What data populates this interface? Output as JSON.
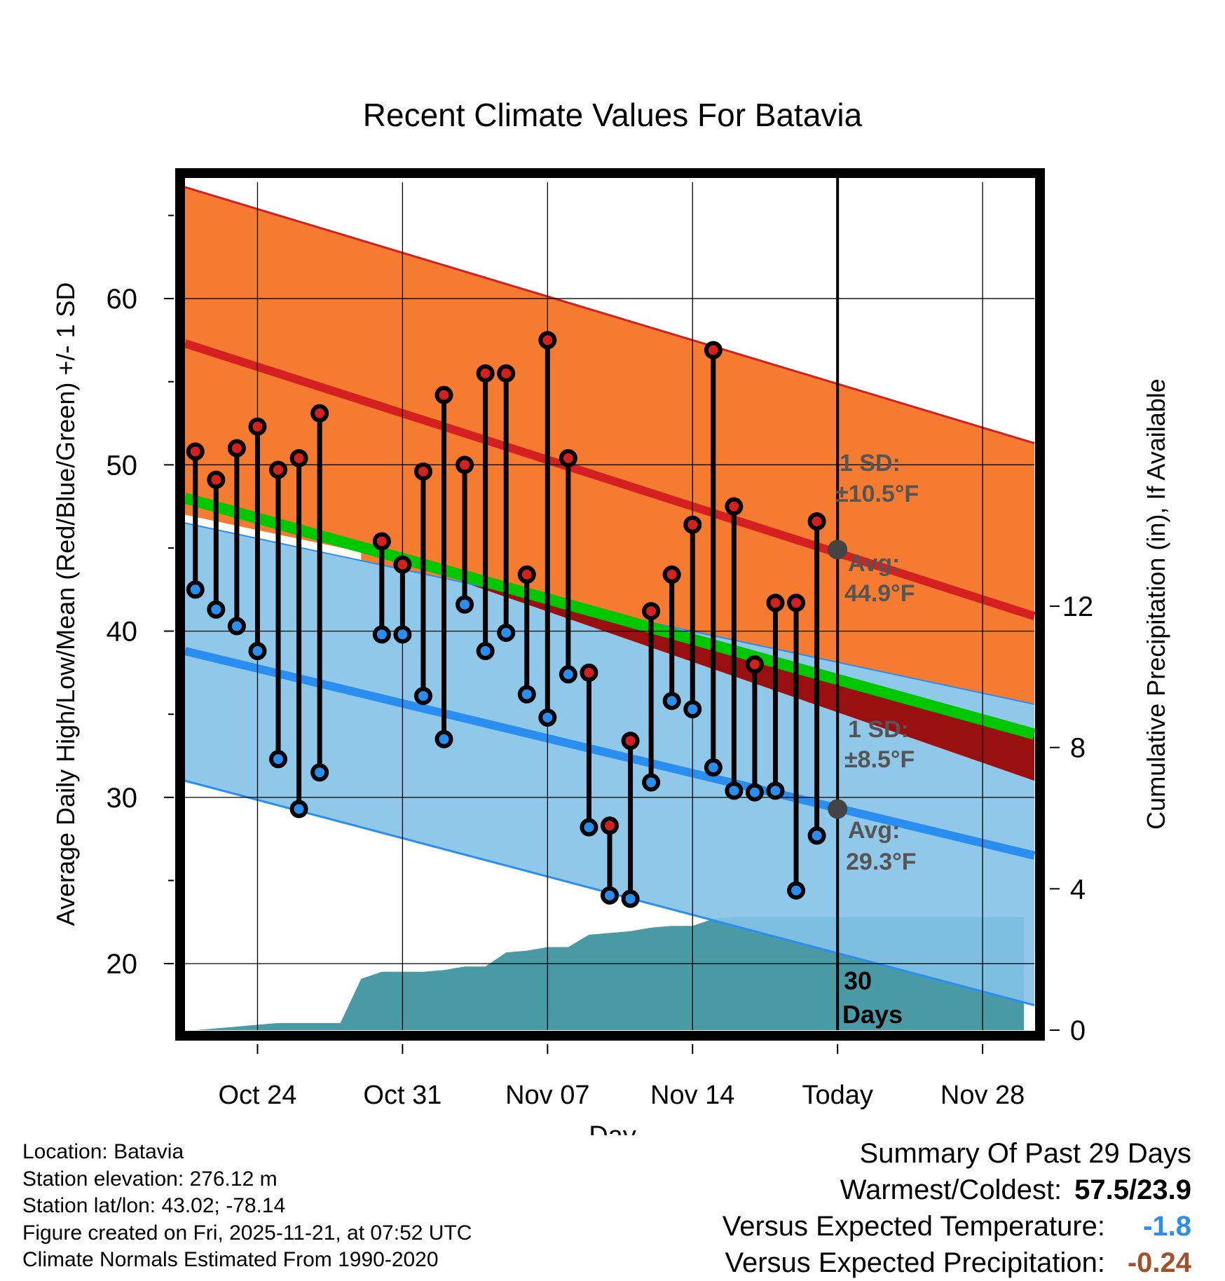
{
  "chart_data": {
    "type": "line",
    "title": "Recent Climate Values For Batavia",
    "xlabel": "Day",
    "ylabel": "Average Daily High/Low/Mean (Red/Blue/Green) +/- 1 SD",
    "y2label": "Cumulative Precipitation (in), If Available",
    "xlim": [
      -0.5,
      40.5
    ],
    "ylim": [
      16,
      67
    ],
    "y2lim": [
      0,
      24
    ],
    "x_ticks": [
      {
        "day": 3,
        "label": "Oct 24"
      },
      {
        "day": 10,
        "label": "Oct 31"
      },
      {
        "day": 17,
        "label": "Nov 07"
      },
      {
        "day": 24,
        "label": "Nov 14"
      },
      {
        "day": 31,
        "label": "Today"
      },
      {
        "day": 38,
        "label": "Nov 28"
      }
    ],
    "y_ticks": [
      20,
      30,
      40,
      50,
      60
    ],
    "y2_ticks": [
      0,
      4,
      8,
      12
    ],
    "grid": true,
    "today_day": 31,
    "normals": {
      "x_range": [
        -0.5,
        40.5
      ],
      "high_avg": [
        57.3,
        40.9
      ],
      "high_upper": [
        66.7,
        51.3
      ],
      "low_avg": [
        38.8,
        26.5
      ],
      "low_upper": [
        46.5,
        35.6
      ],
      "low_lower": [
        31.0,
        17.5
      ],
      "mean_avg": [
        48.0,
        33.8
      ]
    },
    "series": [
      {
        "name": "High",
        "color": "#d42020",
        "values": [
          50.8,
          49.1,
          51.0,
          52.3,
          49.7,
          50.4,
          53.1,
          null,
          null,
          45.4,
          44.0,
          49.6,
          54.2,
          50.0,
          55.5,
          55.5,
          43.4,
          57.5,
          50.4,
          37.5,
          28.3,
          33.4,
          41.2,
          43.4,
          46.4,
          56.9,
          47.5,
          38.0,
          41.7,
          41.7,
          46.6
        ]
      },
      {
        "name": "Low",
        "color": "#2a8ef0",
        "values": [
          42.5,
          41.3,
          40.3,
          38.8,
          32.3,
          29.3,
          31.5,
          null,
          null,
          39.8,
          39.8,
          36.1,
          33.5,
          41.6,
          38.8,
          39.9,
          36.2,
          34.8,
          37.4,
          28.2,
          24.1,
          23.9,
          30.9,
          35.8,
          35.3,
          31.8,
          30.4,
          30.3,
          30.4,
          24.4,
          27.7
        ]
      },
      {
        "name": "Cumulative Precipitation",
        "color": "#4a9aa5",
        "values": [
          0.0,
          0.05,
          0.1,
          0.15,
          0.2,
          0.2,
          0.2,
          0.2,
          1.45,
          1.65,
          1.65,
          1.65,
          1.7,
          1.8,
          1.8,
          2.2,
          2.25,
          2.35,
          2.35,
          2.7,
          2.75,
          2.8,
          2.9,
          2.95,
          2.95,
          3.15,
          3.2,
          3.2,
          3.2,
          3.2,
          3.2,
          3.2,
          3.2,
          3.2,
          3.2,
          3.2,
          3.2,
          3.2,
          3.2,
          3.2,
          3.2
        ]
      }
    ],
    "annotations": {
      "high_sd_label": "1 SD:",
      "high_sd_value": "±10.5°F",
      "high_avg_label": "Avg:",
      "high_avg_value": "44.9°F",
      "low_sd_label": "1 SD:",
      "low_sd_value": "±8.5°F",
      "low_avg_label": "Avg:",
      "low_avg_value": "29.3°F",
      "precip_label_1": "30",
      "precip_label_2": "Days",
      "high_avg_today": 44.9,
      "low_avg_today": 29.3
    },
    "colors": {
      "high_band": "#f47b30",
      "high_line": "#d42020",
      "low_band": "#84c2e8",
      "low_line": "#2a8ef0",
      "mean_band": "#00c800",
      "dark_band": "#9a1010",
      "precip": "#4a9aa5",
      "annotation": "#555555",
      "frame": "#000000"
    }
  },
  "footer": {
    "location": "Location: Batavia",
    "elevation": "Station elevation: 276.12 m",
    "latlon": "Station lat/lon: 43.02; -78.14",
    "created": "Figure created on Fri, 2025-11-21, at 07:52 UTC",
    "normals": "Climate Normals Estimated From 1990-2020"
  },
  "summary": {
    "heading": "Summary Of Past 29 Days",
    "warmest_label": "Warmest/Coldest:",
    "warmest_value": "57.5/23.9",
    "temp_label": "Versus Expected Temperature:",
    "temp_value": "-1.8",
    "temp_color": "#2a8ef0",
    "precip_label": "Versus Expected Precipitation:",
    "precip_value": "-0.24",
    "precip_color": "#a0522d"
  }
}
